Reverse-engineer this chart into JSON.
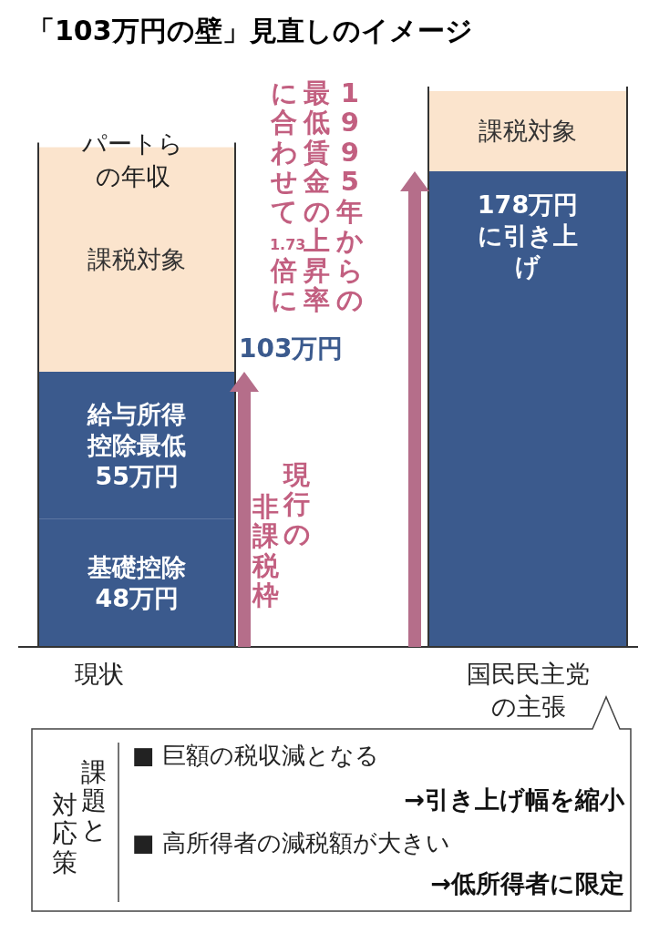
{
  "chart_data": {
    "type": "bar",
    "title": "「103万円の壁」見直しのイメージ",
    "categories": [
      "現状",
      "国民民主党の主張"
    ],
    "stacked": true,
    "series": [
      {
        "color": "#3b5a8d",
        "values": [
          48,
          178
        ],
        "value_labels": [
          "基礎控除48万円",
          "178万円に引き上げ"
        ]
      },
      {
        "color": "#3b5a8d",
        "values": [
          55,
          null
        ],
        "value_labels": [
          "給与所得控除最低55万円",
          null
        ]
      },
      {
        "color": "#fbe4cd",
        "values": [
          84,
          30
        ],
        "value_labels": [
          "課税対象",
          "課税対象"
        ]
      }
    ],
    "annotations": [
      "パートらの年収",
      "現行の",
      "非課税枠",
      "103万円",
      "1995年からの",
      "最低賃金の上昇率",
      "に合わせて1.73倍に",
      "課題と",
      "対応策",
      "■ 巨額の税収減となる",
      "→引き上げ幅を縮小",
      "■ 高所得者の減税額が大きい",
      "→低所得者に限定"
    ]
  }
}
